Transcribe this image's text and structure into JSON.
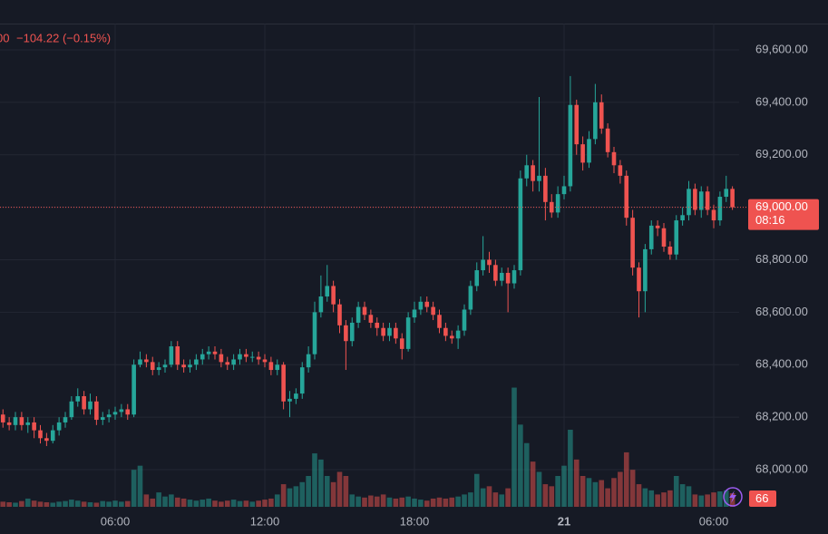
{
  "chart_data": {
    "type": "candlestick",
    "legend_prefix": "00",
    "change_label": "−104.22 (−0.15%)",
    "open": [
      68210,
      68180,
      68170,
      68200,
      68170,
      68180,
      68150,
      68120,
      68110,
      68150,
      68180,
      68200,
      68260,
      68280,
      68230,
      68260,
      68190,
      68200,
      68210,
      68220,
      68230,
      68210,
      68400,
      68420,
      68410,
      68380,
      68390,
      68400,
      68470,
      68400,
      68390,
      68400,
      68420,
      68440,
      68450,
      68440,
      68410,
      68400,
      68420,
      68440,
      68430,
      68430,
      68420,
      68410,
      68380,
      68400,
      68260,
      68270,
      68290,
      68390,
      68440,
      68600,
      68660,
      68700,
      68630,
      68550,
      68490,
      68560,
      68620,
      68590,
      68560,
      68540,
      68510,
      68540,
      68500,
      68460,
      68580,
      68610,
      68640,
      68620,
      68590,
      68540,
      68510,
      68500,
      68530,
      68610,
      68700,
      68760,
      68800,
      68780,
      68720,
      68750,
      68710,
      68760,
      69110,
      69160,
      69100,
      69120,
      69020,
      68980,
      69050,
      69080,
      69390,
      69240,
      69170,
      69260,
      69400,
      69300,
      69210,
      69160,
      69120,
      68960,
      68770,
      68680,
      68840,
      68930,
      68920,
      68850,
      68820,
      68950,
      68970,
      69070,
      68990,
      69060,
      68990,
      68950,
      69040,
      69070
    ],
    "high": [
      68230,
      68200,
      68220,
      68220,
      68200,
      68200,
      68170,
      68140,
      68170,
      68200,
      68220,
      68280,
      68310,
      68300,
      68290,
      68280,
      68220,
      68230,
      68240,
      68250,
      68250,
      68420,
      68450,
      68440,
      68430,
      68410,
      68420,
      68490,
      68490,
      68420,
      68420,
      68440,
      68460,
      68470,
      68470,
      68460,
      68430,
      68440,
      68460,
      68460,
      68450,
      68450,
      68440,
      68430,
      68420,
      68410,
      68300,
      68310,
      68410,
      68470,
      68640,
      68740,
      68780,
      68720,
      68650,
      68570,
      68580,
      68640,
      68640,
      68610,
      68580,
      68560,
      68560,
      68560,
      68520,
      68600,
      68640,
      68660,
      68660,
      68640,
      68610,
      68560,
      68530,
      68550,
      68630,
      68720,
      68790,
      68890,
      68830,
      68800,
      68770,
      68770,
      68780,
      69140,
      69200,
      69180,
      69420,
      69150,
      69050,
      69080,
      69120,
      69500,
      69410,
      69270,
      69290,
      69470,
      69430,
      69320,
      69230,
      69180,
      69140,
      68990,
      68790,
      68860,
      68950,
      68950,
      68940,
      68870,
      68970,
      69000,
      69100,
      69090,
      69080,
      69080,
      69010,
      69060,
      69120,
      69080
    ],
    "low": [
      68160,
      68150,
      68150,
      68150,
      68140,
      68120,
      68100,
      68090,
      68100,
      68130,
      68160,
      68190,
      68240,
      68210,
      68210,
      68170,
      68170,
      68180,
      68190,
      68200,
      68190,
      68200,
      68390,
      68390,
      68360,
      68360,
      68370,
      68390,
      68380,
      68370,
      68370,
      68380,
      68400,
      68420,
      68420,
      68390,
      68380,
      68380,
      68400,
      68410,
      68410,
      68400,
      68390,
      68360,
      68360,
      68230,
      68200,
      68250,
      68270,
      68370,
      68420,
      68580,
      68640,
      68600,
      68520,
      68380,
      68470,
      68540,
      68570,
      68540,
      68510,
      68490,
      68490,
      68480,
      68420,
      68450,
      68560,
      68590,
      68600,
      68570,
      68520,
      68490,
      68480,
      68460,
      68510,
      68590,
      68680,
      68740,
      68750,
      68700,
      68700,
      68600,
      68690,
      68740,
      69080,
      69060,
      69060,
      68950,
      68960,
      68960,
      69030,
      69060,
      69200,
      69140,
      69150,
      69240,
      69280,
      69190,
      69130,
      69090,
      68930,
      68740,
      68580,
      68600,
      68820,
      68890,
      68830,
      68800,
      68800,
      68930,
      68950,
      68970,
      68960,
      68970,
      68920,
      68930,
      69020,
      68990
    ],
    "close": [
      68180,
      68170,
      68200,
      68170,
      68180,
      68150,
      68120,
      68110,
      68150,
      68180,
      68200,
      68260,
      68280,
      68230,
      68260,
      68190,
      68200,
      68210,
      68220,
      68230,
      68210,
      68400,
      68420,
      68410,
      68380,
      68390,
      68400,
      68470,
      68400,
      68390,
      68400,
      68420,
      68440,
      68450,
      68440,
      68410,
      68400,
      68420,
      68440,
      68430,
      68430,
      68420,
      68410,
      68380,
      68400,
      68260,
      68270,
      68290,
      68390,
      68440,
      68600,
      68660,
      68700,
      68630,
      68550,
      68490,
      68560,
      68620,
      68590,
      68560,
      68540,
      68510,
      68540,
      68500,
      68460,
      68580,
      68610,
      68640,
      68620,
      68590,
      68540,
      68510,
      68500,
      68530,
      68610,
      68700,
      68760,
      68800,
      68780,
      68720,
      68750,
      68710,
      68760,
      69110,
      69160,
      69100,
      69120,
      69020,
      68980,
      69050,
      69080,
      69390,
      69240,
      69170,
      69260,
      69400,
      69300,
      69210,
      69160,
      69120,
      68960,
      68770,
      68680,
      68840,
      68930,
      68920,
      68850,
      68820,
      68950,
      68970,
      69070,
      68990,
      69060,
      68990,
      68950,
      69040,
      69070,
      69000
    ],
    "volume": [
      25,
      22,
      20,
      28,
      40,
      30,
      25,
      22,
      20,
      25,
      28,
      35,
      30,
      25,
      22,
      20,
      28,
      25,
      30,
      25,
      28,
      180,
      200,
      60,
      40,
      70,
      50,
      60,
      45,
      40,
      35,
      30,
      35,
      40,
      30,
      25,
      30,
      35,
      28,
      30,
      25,
      30,
      35,
      40,
      60,
      110,
      90,
      100,
      120,
      150,
      260,
      230,
      150,
      120,
      170,
      150,
      60,
      50,
      45,
      55,
      50,
      60,
      45,
      40,
      45,
      50,
      40,
      35,
      30,
      40,
      45,
      40,
      45,
      50,
      60,
      70,
      160,
      90,
      100,
      70,
      60,
      90,
      580,
      400,
      310,
      220,
      170,
      110,
      100,
      150,
      200,
      375,
      230,
      150,
      140,
      120,
      130,
      90,
      140,
      170,
      265,
      180,
      110,
      90,
      80,
      60,
      70,
      80,
      150,
      110,
      100,
      60,
      55,
      60,
      70,
      75,
      80,
      66
    ],
    "up_color": "#26a69a",
    "down_color": "#ef5350",
    "ylim": [
      67855,
      69700
    ],
    "yticks": [
      {
        "value": 68000,
        "label": "68,000.00"
      },
      {
        "value": 68200,
        "label": "68,200.00"
      },
      {
        "value": 68400,
        "label": "68,400.00"
      },
      {
        "value": 68600,
        "label": "68,600.00"
      },
      {
        "value": 68800,
        "label": "68,800.00"
      },
      {
        "value": 69000,
        "label": "69,000.00"
      },
      {
        "value": 69200,
        "label": "69,200.00"
      },
      {
        "value": 69400,
        "label": "69,400.00"
      },
      {
        "value": 69600,
        "label": "69,600.00"
      }
    ],
    "volume_ylim": [
      0,
      600
    ],
    "xticks": [
      {
        "value": 18,
        "label": "06:00"
      },
      {
        "value": 42,
        "label": "12:00"
      },
      {
        "value": 66,
        "label": "18:00"
      },
      {
        "value": 90,
        "label": "21"
      },
      {
        "value": 114,
        "label": "06:00"
      }
    ],
    "last_price": {
      "value": 69000,
      "label": "69,000.00"
    },
    "countdown": "08:16",
    "grid": true
  }
}
